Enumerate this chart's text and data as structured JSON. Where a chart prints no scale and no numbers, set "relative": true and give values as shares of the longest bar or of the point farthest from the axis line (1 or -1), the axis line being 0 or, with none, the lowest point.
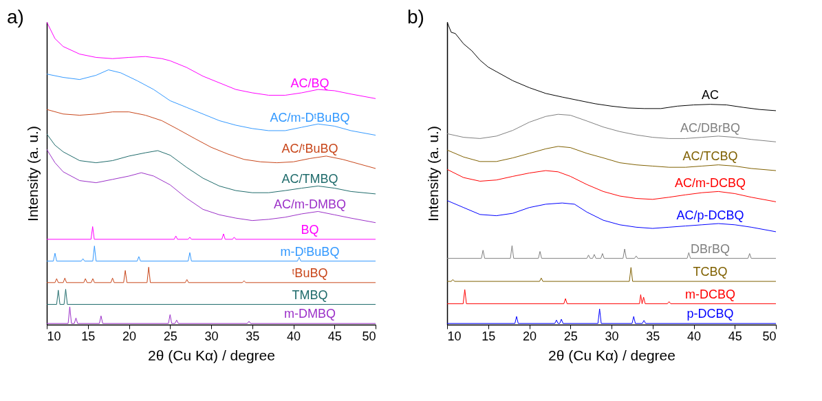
{
  "chart_data": [
    {
      "type": "line",
      "title": "a)",
      "xlabel": "2θ (Cu Kα) / degree",
      "ylabel": "Intensity (a. u.)",
      "relative": true,
      "tick_labels": "x",
      "xlim": [
        10,
        50
      ],
      "xticks": [
        10,
        15,
        20,
        25,
        30,
        35,
        40,
        45,
        50
      ],
      "series": [
        {
          "name": "AC/BQ",
          "color": "#ff00ff",
          "x": [
            10,
            11,
            12,
            14,
            16,
            18,
            20,
            22,
            24,
            25,
            27,
            29,
            31,
            33,
            35,
            37,
            39,
            41,
            43,
            45,
            47,
            50
          ],
          "values": [
            1.0,
            0.945,
            0.919,
            0.894,
            0.883,
            0.879,
            0.883,
            0.886,
            0.879,
            0.872,
            0.85,
            0.821,
            0.799,
            0.777,
            0.766,
            0.758,
            0.758,
            0.766,
            0.777,
            0.773,
            0.762,
            0.747
          ]
        },
        {
          "name": "AC/m-DᵗBuBQ",
          "color": "#3399ff",
          "x": [
            10,
            12,
            14,
            16,
            17.5,
            19,
            21,
            23,
            25,
            27,
            29,
            31,
            33,
            35,
            37,
            39,
            41,
            43,
            45,
            47,
            50
          ],
          "values": [
            0.828,
            0.817,
            0.81,
            0.824,
            0.842,
            0.832,
            0.806,
            0.777,
            0.74,
            0.718,
            0.696,
            0.674,
            0.659,
            0.648,
            0.641,
            0.641,
            0.652,
            0.663,
            0.656,
            0.641,
            0.626
          ]
        },
        {
          "name": "AC/ᵗBuBQ",
          "color": "#c8461a",
          "x": [
            10,
            12,
            14,
            16,
            18,
            20,
            22,
            24,
            26,
            28,
            30,
            32,
            34,
            36,
            38,
            40,
            42,
            44,
            46,
            48,
            50
          ],
          "values": [
            0.711,
            0.696,
            0.692,
            0.696,
            0.703,
            0.703,
            0.692,
            0.674,
            0.645,
            0.615,
            0.586,
            0.564,
            0.546,
            0.538,
            0.535,
            0.538,
            0.549,
            0.557,
            0.546,
            0.531,
            0.516
          ]
        },
        {
          "name": "AC/TMBQ",
          "color": "#1f6b6b",
          "x": [
            10,
            11,
            12,
            14,
            16,
            18,
            20,
            22,
            23.5,
            25,
            27,
            29,
            31,
            33,
            35,
            37,
            39,
            41,
            43,
            45,
            47,
            50
          ],
          "values": [
            0.63,
            0.593,
            0.571,
            0.542,
            0.535,
            0.542,
            0.557,
            0.568,
            0.575,
            0.56,
            0.52,
            0.484,
            0.458,
            0.443,
            0.436,
            0.436,
            0.443,
            0.451,
            0.458,
            0.451,
            0.44,
            0.432
          ]
        },
        {
          "name": "AC/m-DMBQ",
          "color": "#9b30c8",
          "x": [
            10,
            11,
            12,
            14,
            16,
            18,
            20,
            21.5,
            23,
            25,
            27,
            29,
            31,
            33,
            35,
            37,
            39,
            41,
            43,
            45,
            47,
            50
          ],
          "values": [
            0.579,
            0.535,
            0.505,
            0.476,
            0.469,
            0.48,
            0.491,
            0.502,
            0.491,
            0.462,
            0.418,
            0.381,
            0.363,
            0.352,
            0.344,
            0.348,
            0.355,
            0.366,
            0.374,
            0.363,
            0.352,
            0.337
          ]
        },
        {
          "name": "BQ",
          "color": "#ff00ff",
          "x": [
            10,
            15.38,
            15.58,
            15.78,
            25.5,
            25.7,
            25.9,
            27.2,
            27.4,
            27.6,
            31.3,
            31.5,
            31.7,
            32.6,
            32.8,
            33.0,
            50
          ],
          "values": [
            0.282,
            0.282,
            0.324,
            0.282,
            0.282,
            0.293,
            0.282,
            0.282,
            0.289,
            0.282,
            0.282,
            0.3,
            0.282,
            0.282,
            0.289,
            0.282,
            0.282
          ]
        },
        {
          "name": "m-DᵗBuBQ",
          "color": "#3399ff",
          "x": [
            10,
            10.8,
            11.0,
            11.2,
            14.2,
            14.4,
            14.6,
            15.6,
            15.8,
            16.0,
            21.0,
            21.2,
            21.4,
            27.2,
            27.4,
            27.6,
            40.5,
            40.7,
            40.9,
            50
          ],
          "values": [
            0.21,
            0.21,
            0.236,
            0.21,
            0.21,
            0.218,
            0.21,
            0.21,
            0.26,
            0.21,
            0.21,
            0.225,
            0.21,
            0.21,
            0.238,
            0.21,
            0.21,
            0.223,
            0.21,
            0.21
          ]
        },
        {
          "name": "ᵗBuBQ",
          "color": "#c8461a",
          "x": [
            10,
            11.0,
            11.2,
            11.4,
            12.0,
            12.2,
            12.4,
            14.5,
            14.7,
            14.9,
            15.4,
            15.6,
            15.8,
            17.8,
            18.0,
            18.2,
            19.35,
            19.55,
            19.75,
            22.2,
            22.4,
            22.6,
            26.85,
            27.05,
            27.25,
            33.8,
            34.0,
            34.2,
            50
          ],
          "values": [
            0.139,
            0.139,
            0.152,
            0.139,
            0.139,
            0.154,
            0.139,
            0.139,
            0.152,
            0.139,
            0.139,
            0.152,
            0.139,
            0.139,
            0.154,
            0.139,
            0.139,
            0.179,
            0.139,
            0.139,
            0.19,
            0.139,
            0.139,
            0.149,
            0.139,
            0.139,
            0.145,
            0.139,
            0.139
          ]
        },
        {
          "name": "TMBQ",
          "color": "#1f6b6b",
          "x": [
            10,
            11.2,
            11.4,
            11.6,
            12.1,
            12.3,
            12.5,
            50
          ],
          "values": [
            0.067,
            0.067,
            0.114,
            0.067,
            0.067,
            0.117,
            0.067,
            0.067
          ]
        },
        {
          "name": "m-DMBQ",
          "color": "#9b30c8",
          "x": [
            10,
            12.6,
            12.8,
            13.0,
            13.35,
            13.55,
            13.75,
            16.4,
            16.6,
            16.8,
            24.8,
            25.0,
            25.2,
            25.6,
            25.8,
            26.0,
            34.4,
            34.6,
            34.8,
            50
          ],
          "values": [
            0.004,
            0.004,
            0.059,
            0.004,
            0.004,
            0.022,
            0.004,
            0.004,
            0.029,
            0.004,
            0.004,
            0.033,
            0.004,
            0.004,
            0.015,
            0.004,
            0.004,
            0.011,
            0.004,
            0.004
          ]
        }
      ]
    },
    {
      "type": "line",
      "title": "b)",
      "xlabel": "2θ (Cu Kα) / degree",
      "ylabel": "Intensity (a. u.)",
      "relative": true,
      "tick_labels": "x",
      "xlim": [
        10,
        50
      ],
      "xticks": [
        10,
        15,
        20,
        25,
        30,
        35,
        40,
        45,
        50
      ],
      "series": [
        {
          "name": "AC",
          "color": "#000000",
          "x": [
            10,
            10.5,
            11,
            12,
            13,
            14,
            15,
            16,
            18,
            20,
            22,
            24,
            26,
            28,
            30,
            32,
            34,
            36,
            38,
            40,
            42,
            44,
            46,
            48,
            50
          ],
          "values": [
            1.0,
            0.966,
            0.962,
            0.928,
            0.905,
            0.874,
            0.851,
            0.836,
            0.806,
            0.783,
            0.764,
            0.752,
            0.741,
            0.73,
            0.722,
            0.716,
            0.714,
            0.714,
            0.722,
            0.726,
            0.728,
            0.726,
            0.718,
            0.711,
            0.707
          ]
        },
        {
          "name": "AC/DBrBQ",
          "color": "#808080",
          "x": [
            10,
            12,
            14,
            16,
            18,
            20,
            22,
            23.5,
            25,
            27,
            29,
            31,
            33,
            35,
            37,
            39,
            41,
            43,
            45,
            47,
            50
          ],
          "values": [
            0.631,
            0.619,
            0.615,
            0.623,
            0.642,
            0.669,
            0.688,
            0.695,
            0.692,
            0.673,
            0.653,
            0.638,
            0.627,
            0.619,
            0.615,
            0.615,
            0.619,
            0.623,
            0.619,
            0.612,
            0.604
          ]
        },
        {
          "name": "AC/TCBQ",
          "color": "#7f6000",
          "x": [
            10,
            12,
            14,
            16,
            18,
            20,
            22,
            23.5,
            25,
            27,
            29,
            31,
            33,
            35,
            37,
            39,
            41,
            43,
            45,
            47,
            50
          ],
          "values": [
            0.577,
            0.554,
            0.539,
            0.539,
            0.551,
            0.566,
            0.581,
            0.589,
            0.585,
            0.566,
            0.551,
            0.535,
            0.528,
            0.524,
            0.52,
            0.52,
            0.524,
            0.528,
            0.524,
            0.516,
            0.509
          ]
        },
        {
          "name": "AC/m-DCBQ",
          "color": "#ff0000",
          "x": [
            10,
            12,
            14,
            16,
            18,
            20,
            22,
            23.5,
            25,
            27,
            29,
            31,
            33,
            35,
            37,
            39,
            41,
            43,
            45,
            47,
            50
          ],
          "values": [
            0.513,
            0.486,
            0.474,
            0.478,
            0.49,
            0.501,
            0.509,
            0.505,
            0.49,
            0.463,
            0.44,
            0.425,
            0.417,
            0.414,
            0.421,
            0.429,
            0.436,
            0.44,
            0.433,
            0.421,
            0.406
          ]
        },
        {
          "name": "AC/p-DCBQ",
          "color": "#0000ff",
          "x": [
            10,
            12,
            14,
            16,
            18,
            20,
            22,
            24,
            25.5,
            27,
            29,
            31,
            33,
            35,
            37,
            39,
            41,
            43,
            45,
            47,
            50
          ],
          "values": [
            0.41,
            0.387,
            0.364,
            0.36,
            0.368,
            0.387,
            0.398,
            0.402,
            0.398,
            0.372,
            0.345,
            0.33,
            0.322,
            0.318,
            0.322,
            0.326,
            0.33,
            0.334,
            0.33,
            0.322,
            0.307
          ]
        },
        {
          "name": "DBrBQ",
          "color": "#808080",
          "x": [
            10,
            14.17,
            14.37,
            14.57,
            17.7,
            17.9,
            18.1,
            21.1,
            21.3,
            21.5,
            27.0,
            27.2,
            27.4,
            27.7,
            27.9,
            28.1,
            28.7,
            28.9,
            29.1,
            31.4,
            31.6,
            31.8,
            32.8,
            33.0,
            33.2,
            39.2,
            39.4,
            39.6,
            46.6,
            46.8,
            47.0,
            50
          ],
          "values": [
            0.219,
            0.219,
            0.246,
            0.219,
            0.219,
            0.261,
            0.219,
            0.219,
            0.242,
            0.219,
            0.219,
            0.23,
            0.219,
            0.219,
            0.232,
            0.219,
            0.219,
            0.235,
            0.219,
            0.219,
            0.25,
            0.219,
            0.219,
            0.227,
            0.219,
            0.219,
            0.238,
            0.219,
            0.219,
            0.235,
            0.219,
            0.219
          ]
        },
        {
          "name": "TCBQ",
          "color": "#7f6000",
          "x": [
            10,
            10.5,
            10.7,
            10.9,
            21.25,
            21.45,
            21.65,
            32.17,
            32.37,
            32.57,
            50
          ],
          "values": [
            0.143,
            0.143,
            0.149,
            0.143,
            0.143,
            0.154,
            0.143,
            0.143,
            0.189,
            0.143,
            0.143
          ]
        },
        {
          "name": "m-DCBQ",
          "color": "#ff0000",
          "x": [
            10,
            11.95,
            12.15,
            12.35,
            24.2,
            24.4,
            24.6,
            33.4,
            33.55,
            33.72,
            33.9,
            34.1,
            36.8,
            37.0,
            37.2,
            50
          ],
          "values": [
            0.069,
            0.069,
            0.116,
            0.069,
            0.069,
            0.086,
            0.069,
            0.069,
            0.099,
            0.069,
            0.091,
            0.069,
            0.069,
            0.076,
            0.069,
            0.069
          ]
        },
        {
          "name": "p-DCBQ",
          "color": "#0000ff",
          "x": [
            10,
            18.25,
            18.45,
            18.65,
            23.1,
            23.3,
            23.5,
            23.7,
            23.9,
            24.1,
            28.35,
            28.55,
            28.75,
            32.5,
            32.7,
            32.9,
            33.75,
            33.95,
            34.15,
            50
          ],
          "values": [
            0.004,
            0.004,
            0.027,
            0.004,
            0.004,
            0.015,
            0.004,
            0.004,
            0.018,
            0.004,
            0.004,
            0.052,
            0.004,
            0.004,
            0.027,
            0.004,
            0.004,
            0.014,
            0.004,
            0.004
          ]
        }
      ]
    }
  ]
}
